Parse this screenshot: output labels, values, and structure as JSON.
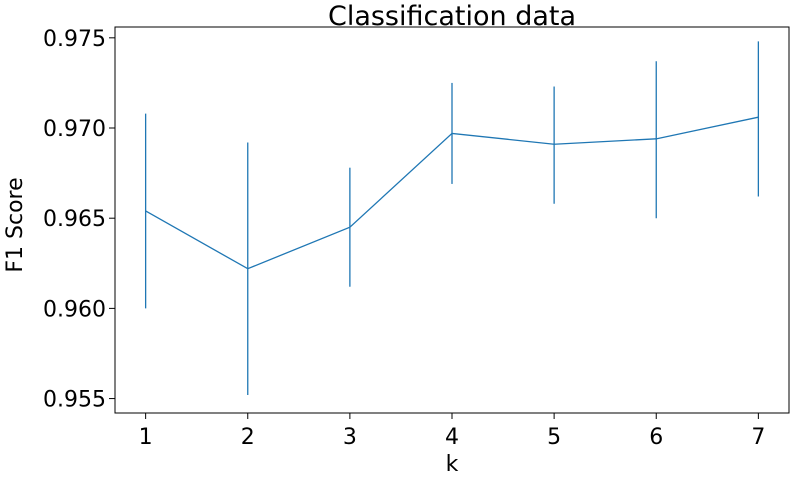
{
  "chart_data": {
    "type": "line",
    "title": "Classification data",
    "xlabel": "k",
    "ylabel": "F1 Score",
    "x": [
      1,
      2,
      3,
      4,
      5,
      6,
      7
    ],
    "xticks": [
      "1",
      "2",
      "3",
      "4",
      "5",
      "6",
      "7"
    ],
    "yticks": [
      "0.955",
      "0.960",
      "0.965",
      "0.970",
      "0.975"
    ],
    "ytick_values": [
      0.955,
      0.96,
      0.965,
      0.97,
      0.975
    ],
    "xlim": [
      0.7,
      7.3
    ],
    "ylim": [
      0.9542,
      0.9756
    ],
    "grid": false,
    "series": [
      {
        "name": "F1 Score",
        "color": "#1f77b4",
        "values": [
          0.9654,
          0.9622,
          0.9645,
          0.9697,
          0.9691,
          0.9694,
          0.9706
        ],
        "error_lower": [
          0.96,
          0.9552,
          0.9612,
          0.9669,
          0.9658,
          0.965,
          0.9662
        ],
        "error_upper": [
          0.9708,
          0.9692,
          0.9678,
          0.9725,
          0.9723,
          0.9737,
          0.9748
        ]
      }
    ]
  }
}
